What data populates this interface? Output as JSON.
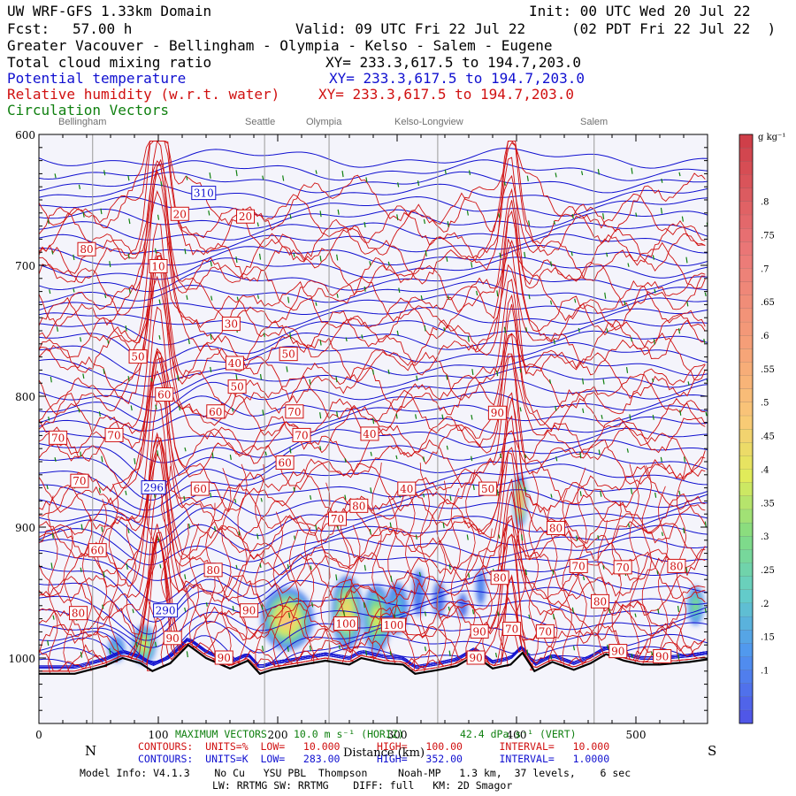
{
  "header": {
    "model_domain": "UW WRF-GFS 1.33km Domain",
    "init": "Init: 00 UTC Wed 20 Jul 22",
    "fcst_label": "Fcst:",
    "fcst_value": "57.00 h",
    "valid": "Valid: 09 UTC Fri 22 Jul 22",
    "valid_local": "(02 PDT Fri 22 Jul 22  )",
    "region": "Greater Vacouver - Bellingham - Olympia - Kelso - Salem - Eugene",
    "fields": [
      {
        "label": "Total cloud mixing ratio",
        "xy": "XY= 233.3,617.5 to 194.7,203.0"
      },
      {
        "label": "Potential temperature",
        "xy": "XY= 233.3,617.5 to 194.7,203.0"
      },
      {
        "label": "Relative humidity (w.r.t. water)",
        "xy": "XY= 233.3,617.5 to 194.7,203.0"
      },
      {
        "label": "Circulation Vectors",
        "xy": ""
      }
    ]
  },
  "towns": [
    "Bellingham",
    "Seattle",
    "Olympia",
    "Kelso-Longview",
    "Salem"
  ],
  "footer": {
    "max_vectors": "MAXIMUM VECTORS",
    "vec_horiz": "10.0 m s⁻¹ (HORIZ)",
    "vec_vert": "42.4 dPa s⁻¹ (VERT)",
    "rh_contours": "CONTOURS:  UNITS=%  LOW=   10.000      HIGH=   100.00      INTERVAL=   10.000",
    "th_contours": "CONTOURS:  UNITS=K  LOW=   283.00      HIGH=   352.00      INTERVAL=   1.0000",
    "model_info": "Model Info: V4.1.3    No Cu   YSU PBL  Thompson     Noah-MP   1.3 km,  37 levels,    6 sec",
    "physics": "LW: RRTMG SW: RRTMG    DIFF: full   KM: 2D Smagor",
    "north": "N",
    "south": "S",
    "distance_label": "Distance (km)"
  },
  "colors": {
    "theta": "#1010d0",
    "rh": "#d01010",
    "vectors": "#108010",
    "terrain": "#000000",
    "plot_bg": "#f4f4fb"
  },
  "chart_data": {
    "type": "cross-section",
    "title": "UW WRF-GFS 1.33km Domain",
    "xlabel": "Distance (km)",
    "ylabel": "Pressure (hPa)",
    "x_range": [
      0,
      560
    ],
    "y_range": [
      1050,
      600
    ],
    "y_log_scale": false,
    "xticks": [
      0,
      100,
      200,
      300,
      400,
      500
    ],
    "yticks": [
      600,
      700,
      800,
      900,
      1000
    ],
    "town_positions_km": [
      {
        "name": "Bellingham",
        "km": 45
      },
      {
        "name": "Seattle",
        "km": 189
      },
      {
        "name": "Olympia",
        "km": 243
      },
      {
        "name": "Kelso-Longview",
        "km": 334
      },
      {
        "name": "Salem",
        "km": 465
      }
    ],
    "surface_pressure_hPa": [
      [
        0,
        1012
      ],
      [
        30,
        1012
      ],
      [
        55,
        1006
      ],
      [
        70,
        1000
      ],
      [
        85,
        1004
      ],
      [
        95,
        1010
      ],
      [
        110,
        1004
      ],
      [
        125,
        990
      ],
      [
        140,
        1000
      ],
      [
        160,
        1008
      ],
      [
        175,
        1002
      ],
      [
        185,
        1012
      ],
      [
        195,
        1009
      ],
      [
        215,
        1006
      ],
      [
        240,
        1002
      ],
      [
        260,
        1005
      ],
      [
        270,
        1000
      ],
      [
        290,
        1004
      ],
      [
        305,
        1005
      ],
      [
        315,
        1012
      ],
      [
        335,
        1009
      ],
      [
        350,
        1006
      ],
      [
        365,
        998
      ],
      [
        380,
        1008
      ],
      [
        395,
        1005
      ],
      [
        405,
        996
      ],
      [
        415,
        1010
      ],
      [
        430,
        1003
      ],
      [
        448,
        1009
      ],
      [
        462,
        1004
      ],
      [
        475,
        997
      ],
      [
        490,
        1002
      ],
      [
        505,
        1005
      ],
      [
        520,
        1005
      ],
      [
        545,
        1003
      ],
      [
        560,
        1001
      ]
    ],
    "theta_contours": {
      "units": "K",
      "low": 283.0,
      "high": 352.0,
      "interval": 1.0,
      "labels": [
        {
          "value": 310,
          "x_km": 138,
          "p_hPa": 645
        },
        {
          "value": 296,
          "x_km": 96,
          "p_hPa": 870
        },
        {
          "value": 290,
          "x_km": 106,
          "p_hPa": 964
        }
      ]
    },
    "rh_contours": {
      "units": "%",
      "low": 10.0,
      "high": 100.0,
      "interval": 10.0,
      "labels": [
        {
          "value": 20,
          "x_km": 118,
          "p_hPa": 661
        },
        {
          "value": 20,
          "x_km": 173,
          "p_hPa": 663
        },
        {
          "value": 80,
          "x_km": 40,
          "p_hPa": 688
        },
        {
          "value": 10,
          "x_km": 100,
          "p_hPa": 701
        },
        {
          "value": 30,
          "x_km": 161,
          "p_hPa": 745
        },
        {
          "value": 40,
          "x_km": 164,
          "p_hPa": 775
        },
        {
          "value": 50,
          "x_km": 83,
          "p_hPa": 770
        },
        {
          "value": 50,
          "x_km": 209,
          "p_hPa": 768
        },
        {
          "value": 50,
          "x_km": 166,
          "p_hPa": 793
        },
        {
          "value": 60,
          "x_km": 105,
          "p_hPa": 799
        },
        {
          "value": 60,
          "x_km": 148,
          "p_hPa": 812
        },
        {
          "value": 70,
          "x_km": 214,
          "p_hPa": 812
        },
        {
          "value": 70,
          "x_km": 16,
          "p_hPa": 832
        },
        {
          "value": 70,
          "x_km": 63,
          "p_hPa": 830
        },
        {
          "value": 70,
          "x_km": 220,
          "p_hPa": 830
        },
        {
          "value": 40,
          "x_km": 277,
          "p_hPa": 829
        },
        {
          "value": 90,
          "x_km": 384,
          "p_hPa": 813
        },
        {
          "value": 70,
          "x_km": 34,
          "p_hPa": 865
        },
        {
          "value": 60,
          "x_km": 206,
          "p_hPa": 851
        },
        {
          "value": 60,
          "x_km": 135,
          "p_hPa": 871
        },
        {
          "value": 40,
          "x_km": 308,
          "p_hPa": 871
        },
        {
          "value": 50,
          "x_km": 376,
          "p_hPa": 871
        },
        {
          "value": 80,
          "x_km": 268,
          "p_hPa": 884
        },
        {
          "value": 70,
          "x_km": 250,
          "p_hPa": 894
        },
        {
          "value": 80,
          "x_km": 433,
          "p_hPa": 901
        },
        {
          "value": 60,
          "x_km": 49,
          "p_hPa": 918
        },
        {
          "value": 70,
          "x_km": 452,
          "p_hPa": 930
        },
        {
          "value": 70,
          "x_km": 489,
          "p_hPa": 931
        },
        {
          "value": 80,
          "x_km": 534,
          "p_hPa": 930
        },
        {
          "value": 80,
          "x_km": 146,
          "p_hPa": 933
        },
        {
          "value": 80,
          "x_km": 386,
          "p_hPa": 939
        },
        {
          "value": 80,
          "x_km": 470,
          "p_hPa": 957
        },
        {
          "value": 80,
          "x_km": 33,
          "p_hPa": 966
        },
        {
          "value": 90,
          "x_km": 176,
          "p_hPa": 964
        },
        {
          "value": 100,
          "x_km": 257,
          "p_hPa": 974
        },
        {
          "value": 100,
          "x_km": 297,
          "p_hPa": 975
        },
        {
          "value": 90,
          "x_km": 112,
          "p_hPa": 985
        },
        {
          "value": 90,
          "x_km": 369,
          "p_hPa": 980
        },
        {
          "value": 70,
          "x_km": 396,
          "p_hPa": 978
        },
        {
          "value": 70,
          "x_km": 424,
          "p_hPa": 980
        },
        {
          "value": 90,
          "x_km": 155,
          "p_hPa": 1000
        },
        {
          "value": 90,
          "x_km": 366,
          "p_hPa": 1000
        },
        {
          "value": 90,
          "x_km": 485,
          "p_hPa": 995
        },
        {
          "value": 90,
          "x_km": 522,
          "p_hPa": 999
        }
      ]
    },
    "cloud_mixing_ratio": {
      "units": "g kg⁻¹",
      "colorbar_ticks": [
        0.1,
        0.15,
        0.2,
        0.25,
        0.3,
        0.35,
        0.4,
        0.45,
        0.5,
        0.55,
        0.6,
        0.65,
        0.7,
        0.75,
        0.8
      ],
      "colorbar_tick_labels": [
        ".1",
        ".15",
        ".2",
        ".25",
        ".3",
        ".35",
        ".4",
        ".45",
        ".5",
        ".55",
        ".6",
        ".65",
        ".7",
        ".75",
        ".8"
      ],
      "colorbar_range": [
        0.02,
        0.9
      ],
      "blobs": [
        {
          "x_km": 65,
          "p_hPa": 993,
          "rx_km": 7,
          "rp_hPa": 10,
          "q": 0.2
        },
        {
          "x_km": 88,
          "p_hPa": 990,
          "rx_km": 10,
          "rp_hPa": 15,
          "q": 0.38
        },
        {
          "x_km": 208,
          "p_hPa": 970,
          "rx_km": 22,
          "rp_hPa": 24,
          "q": 0.48
        },
        {
          "x_km": 258,
          "p_hPa": 965,
          "rx_km": 13,
          "rp_hPa": 28,
          "q": 0.44
        },
        {
          "x_km": 283,
          "p_hPa": 970,
          "rx_km": 12,
          "rp_hPa": 26,
          "q": 0.38
        },
        {
          "x_km": 300,
          "p_hPa": 962,
          "rx_km": 9,
          "rp_hPa": 20,
          "q": 0.2
        },
        {
          "x_km": 318,
          "p_hPa": 950,
          "rx_km": 5,
          "rp_hPa": 18,
          "q": 0.12
        },
        {
          "x_km": 335,
          "p_hPa": 955,
          "rx_km": 5,
          "rp_hPa": 14,
          "q": 0.1
        },
        {
          "x_km": 355,
          "p_hPa": 960,
          "rx_km": 4,
          "rp_hPa": 10,
          "q": 0.08
        },
        {
          "x_km": 370,
          "p_hPa": 946,
          "rx_km": 4,
          "rp_hPa": 14,
          "q": 0.12
        },
        {
          "x_km": 403,
          "p_hPa": 880,
          "rx_km": 6,
          "rp_hPa": 20,
          "q": 0.55
        },
        {
          "x_km": 550,
          "p_hPa": 960,
          "rx_km": 7,
          "rp_hPa": 15,
          "q": 0.3
        }
      ]
    }
  }
}
